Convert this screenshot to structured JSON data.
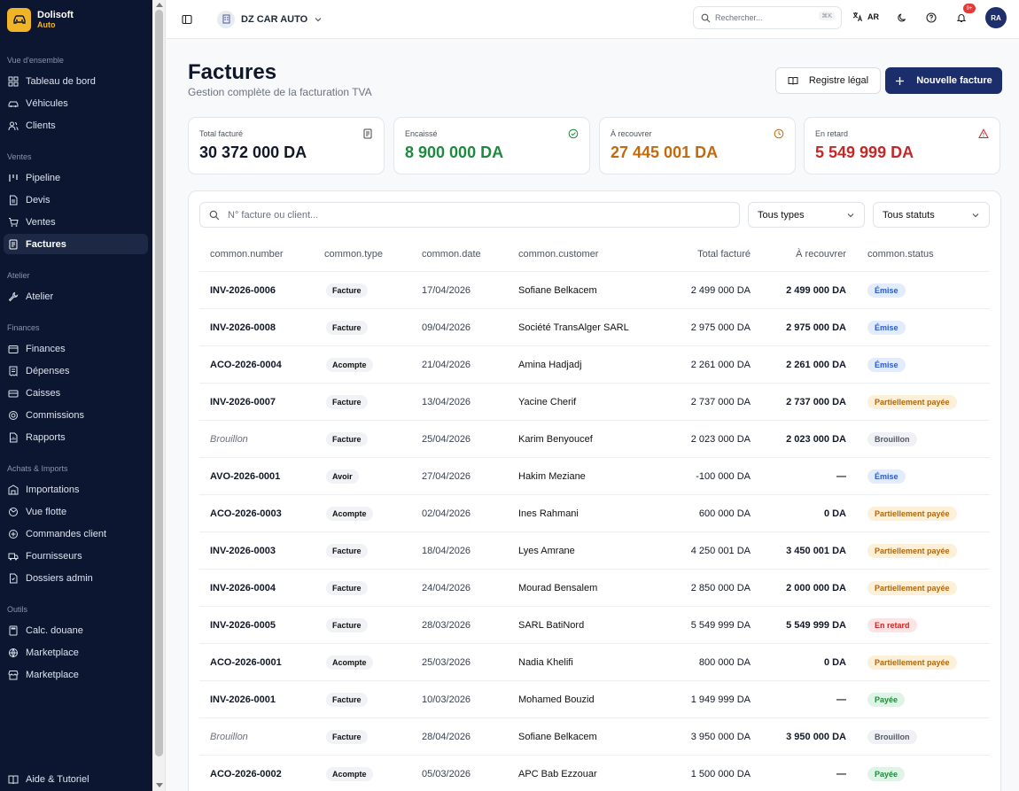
{
  "brand": {
    "name": "Dolisoft",
    "sub": "Auto"
  },
  "sidebar": {
    "sections": [
      {
        "title": "Vue d'ensemble",
        "items": [
          {
            "label": "Tableau de bord",
            "icon": "dashboard-icon"
          },
          {
            "label": "Véhicules",
            "icon": "car-icon"
          },
          {
            "label": "Clients",
            "icon": "users-icon"
          }
        ]
      },
      {
        "title": "Ventes",
        "items": [
          {
            "label": "Pipeline",
            "icon": "pipeline-icon"
          },
          {
            "label": "Devis",
            "icon": "file-icon"
          },
          {
            "label": "Ventes",
            "icon": "cart-icon"
          },
          {
            "label": "Factures",
            "icon": "invoice-icon",
            "active": true
          }
        ]
      },
      {
        "title": "Atelier",
        "items": [
          {
            "label": "Atelier",
            "icon": "wrench-icon"
          }
        ]
      },
      {
        "title": "Finances",
        "items": [
          {
            "label": "Finances",
            "icon": "wallet-icon"
          },
          {
            "label": "Dépenses",
            "icon": "receipt-icon"
          },
          {
            "label": "Caisses",
            "icon": "cashbox-icon"
          },
          {
            "label": "Commissions",
            "icon": "coins-icon"
          },
          {
            "label": "Rapports",
            "icon": "report-icon"
          }
        ]
      },
      {
        "title": "Achats & Imports",
        "items": [
          {
            "label": "Importations",
            "icon": "import-icon"
          },
          {
            "label": "Vue flotte",
            "icon": "fleet-icon"
          },
          {
            "label": "Commandes client",
            "icon": "order-icon"
          },
          {
            "label": "Fournisseurs",
            "icon": "truck-icon"
          },
          {
            "label": "Dossiers admin",
            "icon": "folder-icon"
          }
        ]
      },
      {
        "title": "Outils",
        "items": [
          {
            "label": "Calc. douane",
            "icon": "calculator-icon"
          },
          {
            "label": "Marketplace",
            "icon": "globe-icon"
          },
          {
            "label": "Marketplace",
            "icon": "store-icon"
          }
        ]
      }
    ],
    "help": "Aide & Tutoriel"
  },
  "topbar": {
    "company": "DZ CAR AUTO",
    "search_placeholder": "Rechercher...",
    "shortcut": "⌘K",
    "lang": "AR",
    "notif_count": "9+",
    "avatar": "RA"
  },
  "page": {
    "title": "Factures",
    "subtitle": "Gestion complète de la facturation TVA",
    "btn_register": "Registre légal",
    "btn_new": "Nouvelle facture"
  },
  "kpis": [
    {
      "label": "Total facturé",
      "value": "30 372 000 DA",
      "color": "#111827",
      "icon": "invoice-icon"
    },
    {
      "label": "Encaissé",
      "value": "8 900 000 DA",
      "color": "#1f8a3f",
      "icon": "check-circle-icon"
    },
    {
      "label": "À recouvrer",
      "value": "27 445 001 DA",
      "color": "#c46a0c",
      "icon": "clock-icon"
    },
    {
      "label": "En retard",
      "value": "5 549 999 DA",
      "color": "#c62828",
      "icon": "alert-icon"
    }
  ],
  "filters": {
    "search_placeholder": "N° facture ou client...",
    "type": "Tous types",
    "status": "Tous statuts"
  },
  "table": {
    "columns": [
      "common.number",
      "common.type",
      "common.date",
      "common.customer",
      "Total facturé",
      "À recouvrer",
      "common.status"
    ],
    "rows": [
      {
        "number": "INV-2026-0006",
        "type": "Facture",
        "date": "17/04/2026",
        "customer": "Sofiane Belkacem",
        "total": "2 499 000 DA",
        "due": "2 499 000 DA",
        "status": "Émise",
        "st": "emise"
      },
      {
        "number": "INV-2026-0008",
        "type": "Facture",
        "date": "09/04/2026",
        "customer": "Société TransAlger SARL",
        "total": "2 975 000 DA",
        "due": "2 975 000 DA",
        "status": "Émise",
        "st": "emise"
      },
      {
        "number": "ACO-2026-0004",
        "type": "Acompte",
        "date": "21/04/2026",
        "customer": "Amina Hadjadj",
        "total": "2 261 000 DA",
        "due": "2 261 000 DA",
        "status": "Émise",
        "st": "emise"
      },
      {
        "number": "INV-2026-0007",
        "type": "Facture",
        "date": "13/04/2026",
        "customer": "Yacine Cherif",
        "total": "2 737 000 DA",
        "due": "2 737 000 DA",
        "status": "Partiellement payée",
        "st": "partial"
      },
      {
        "number": "Brouillon",
        "draft": true,
        "type": "Facture",
        "date": "25/04/2026",
        "customer": "Karim Benyoucef",
        "total": "2 023 000 DA",
        "due": "2 023 000 DA",
        "status": "Brouillon",
        "st": "draft"
      },
      {
        "number": "AVO-2026-0001",
        "type": "Avoir",
        "date": "27/04/2026",
        "customer": "Hakim Meziane",
        "total": "-100 000 DA",
        "due": "—",
        "status": "Émise",
        "st": "emise"
      },
      {
        "number": "ACO-2026-0003",
        "type": "Acompte",
        "date": "02/04/2026",
        "customer": "Ines Rahmani",
        "total": "600 000 DA",
        "due": "0 DA",
        "status": "Partiellement payée",
        "st": "partial"
      },
      {
        "number": "INV-2026-0003",
        "type": "Facture",
        "date": "18/04/2026",
        "customer": "Lyes Amrane",
        "total": "4 250 001 DA",
        "due": "3 450 001 DA",
        "status": "Partiellement payée",
        "st": "partial"
      },
      {
        "number": "INV-2026-0004",
        "type": "Facture",
        "date": "24/04/2026",
        "customer": "Mourad Bensalem",
        "total": "2 850 000 DA",
        "due": "2 000 000 DA",
        "status": "Partiellement payée",
        "st": "partial"
      },
      {
        "number": "INV-2026-0005",
        "type": "Facture",
        "date": "28/03/2026",
        "customer": "SARL BatiNord",
        "total": "5 549 999 DA",
        "due": "5 549 999 DA",
        "status": "En retard",
        "st": "late"
      },
      {
        "number": "ACO-2026-0001",
        "type": "Acompte",
        "date": "25/03/2026",
        "customer": "Nadia Khelifi",
        "total": "800 000 DA",
        "due": "0 DA",
        "status": "Partiellement payée",
        "st": "partial"
      },
      {
        "number": "INV-2026-0001",
        "type": "Facture",
        "date": "10/03/2026",
        "customer": "Mohamed Bouzid",
        "total": "1 949 999 DA",
        "due": "—",
        "status": "Payée",
        "st": "paid"
      },
      {
        "number": "Brouillon",
        "draft": true,
        "type": "Facture",
        "date": "28/04/2026",
        "customer": "Sofiane Belkacem",
        "total": "3 950 000 DA",
        "due": "3 950 000 DA",
        "status": "Brouillon",
        "st": "draft"
      },
      {
        "number": "ACO-2026-0002",
        "type": "Acompte",
        "date": "05/03/2026",
        "customer": "APC Bab Ezzouar",
        "total": "1 500 000 DA",
        "due": "—",
        "status": "Payée",
        "st": "paid"
      }
    ]
  },
  "status_colors": {
    "emise": {
      "bg": "#e3ecfc",
      "fg": "#2a5bc9"
    },
    "partial": {
      "bg": "#fdf0d8",
      "fg": "#b2660c"
    },
    "draft": {
      "bg": "#f0f1f4",
      "fg": "#555b66"
    },
    "late": {
      "bg": "#fde4e4",
      "fg": "#c62828"
    },
    "paid": {
      "bg": "#dff4e6",
      "fg": "#1f8a3f"
    }
  }
}
